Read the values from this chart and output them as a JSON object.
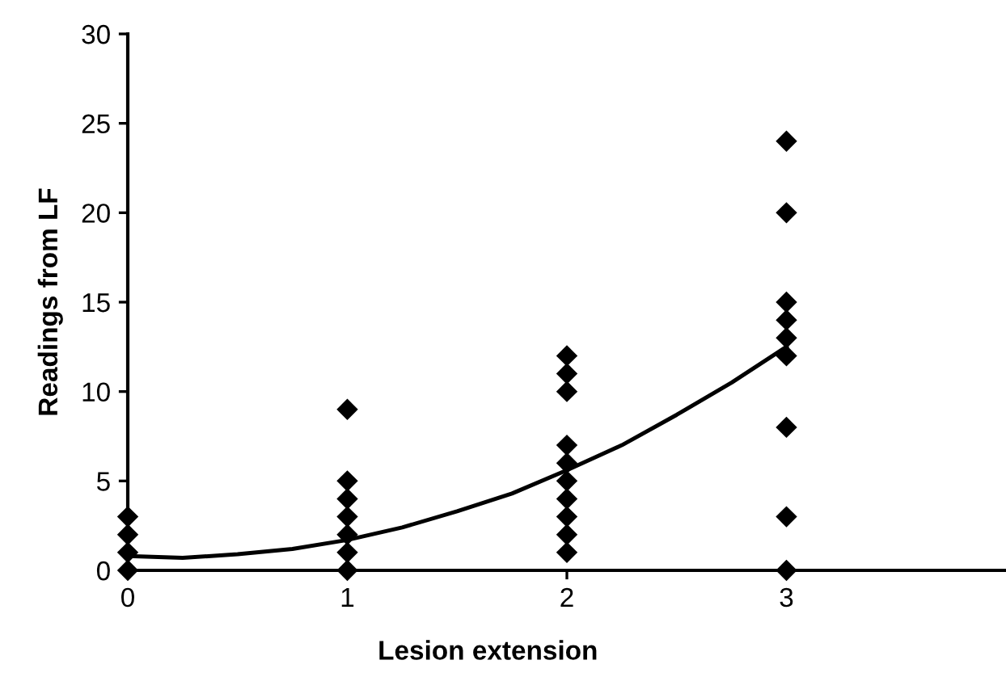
{
  "chart_data": {
    "type": "scatter",
    "xlabel": "Lesion extension",
    "ylabel": "Readings from LF",
    "xlim": [
      0,
      4
    ],
    "ylim": [
      0,
      30
    ],
    "xticks": [
      0,
      1,
      2,
      3
    ],
    "yticks": [
      0,
      5,
      10,
      15,
      20,
      25,
      30
    ],
    "grid": false,
    "legend": false,
    "series": [
      {
        "marker": "diamond",
        "color": "#000000",
        "x": [
          0,
          0,
          0,
          0,
          1,
          1,
          1,
          1,
          1,
          1,
          1,
          2,
          2,
          2,
          2,
          2,
          2,
          2,
          2,
          2,
          2,
          3,
          3,
          3,
          3,
          3,
          3,
          3,
          3,
          3
        ],
        "values": [
          0,
          1,
          2,
          3,
          0,
          1,
          2,
          3,
          4,
          5,
          9,
          1,
          2,
          3,
          4,
          5,
          6,
          7,
          10,
          11,
          12,
          0,
          3,
          8,
          12,
          13,
          14,
          15,
          20,
          24
        ]
      },
      {
        "type": "line",
        "color": "#000000",
        "x": [
          0,
          0.25,
          0.5,
          0.75,
          1,
          1.25,
          1.5,
          1.75,
          2,
          2.25,
          2.5,
          2.75,
          3
        ],
        "values": [
          0.8,
          0.7,
          0.9,
          1.2,
          1.7,
          2.4,
          3.3,
          4.3,
          5.6,
          7.0,
          8.7,
          10.5,
          12.5
        ]
      }
    ]
  }
}
